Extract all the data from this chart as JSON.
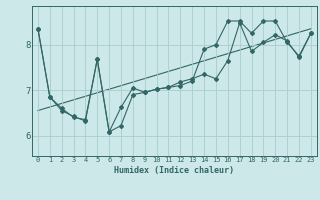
{
  "xlabel": "Humidex (Indice chaleur)",
  "xlim": [
    -0.5,
    23.5
  ],
  "ylim": [
    5.55,
    8.85
  ],
  "background_color": "#cce8e8",
  "line_color": "#336666",
  "grid_color": "#aacccc",
  "text_color": "#336666",
  "line1_x": [
    0,
    1,
    2,
    3,
    4,
    5,
    6,
    7,
    8,
    9,
    10,
    11,
    12,
    13,
    14,
    15,
    16,
    17,
    18,
    19,
    20,
    21,
    22,
    23
  ],
  "line1_y": [
    8.35,
    6.85,
    6.6,
    6.4,
    6.35,
    7.68,
    6.08,
    6.22,
    6.9,
    6.95,
    7.02,
    7.06,
    7.1,
    7.2,
    7.9,
    8.0,
    8.52,
    8.52,
    8.25,
    8.52,
    8.52,
    8.05,
    7.75,
    8.25
  ],
  "line2_x": [
    0,
    1,
    2,
    3,
    4,
    5,
    6,
    7,
    8,
    9,
    10,
    11,
    12,
    13,
    14,
    15,
    16,
    17,
    18,
    19,
    20,
    21,
    22,
    23
  ],
  "line2_y": [
    8.35,
    6.85,
    6.55,
    6.42,
    6.32,
    7.68,
    6.08,
    6.62,
    7.05,
    6.95,
    7.02,
    7.06,
    7.18,
    7.25,
    7.35,
    7.25,
    7.65,
    8.48,
    7.85,
    8.05,
    8.22,
    8.08,
    7.72,
    8.25
  ],
  "line3_x": [
    0,
    23
  ],
  "line3_y": [
    6.55,
    8.35
  ],
  "yticks": [
    6,
    7,
    8
  ],
  "xticks": [
    0,
    1,
    2,
    3,
    4,
    5,
    6,
    7,
    8,
    9,
    10,
    11,
    12,
    13,
    14,
    15,
    16,
    17,
    18,
    19,
    20,
    21,
    22,
    23
  ],
  "tick_fontsize": 5,
  "xlabel_fontsize": 6,
  "ytick_fontsize": 6.5
}
